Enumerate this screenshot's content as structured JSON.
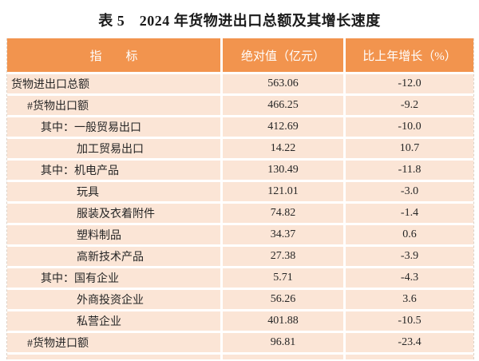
{
  "title": "表 5　2024 年货物进出口总额及其增长速度",
  "colors": {
    "header_bg": "#F2944E",
    "header_text": "#FFFFFF",
    "row_bg": "#FBE5D6",
    "body_text": "#262626"
  },
  "table": {
    "columns": [
      "指　　标",
      "绝对值（亿元）",
      "比上年增长（%）"
    ],
    "rows": [
      {
        "label": "货物进出口总额",
        "indent": 0,
        "value": "563.06",
        "growth": "-12.0"
      },
      {
        "label": "#货物出口额",
        "indent": 1,
        "value": "466.25",
        "growth": "-9.2"
      },
      {
        "label": "其中：一般贸易出口",
        "indent": 2,
        "value": "412.69",
        "growth": "-10.0"
      },
      {
        "label": "加工贸易出口",
        "indent": 3,
        "value": "14.22",
        "growth": "10.7"
      },
      {
        "label": "其中：机电产品",
        "indent": 2,
        "value": "130.49",
        "growth": "-11.8"
      },
      {
        "label": "玩具",
        "indent": 3,
        "value": "121.01",
        "growth": "-3.0"
      },
      {
        "label": "服装及衣着附件",
        "indent": 3,
        "value": "74.82",
        "growth": "-1.4"
      },
      {
        "label": "塑料制品",
        "indent": 3,
        "value": "34.37",
        "growth": "0.6"
      },
      {
        "label": "高新技术产品",
        "indent": 3,
        "value": "27.38",
        "growth": "-3.9"
      },
      {
        "label": "其中：国有企业",
        "indent": 2,
        "value": "5.71",
        "growth": "-4.3"
      },
      {
        "label": "外商投资企业",
        "indent": 3,
        "value": "56.26",
        "growth": "3.6"
      },
      {
        "label": "私营企业",
        "indent": 3,
        "value": "401.88",
        "growth": "-10.5"
      },
      {
        "label": "#货物进口额",
        "indent": 1,
        "value": "96.81",
        "growth": "-23.4"
      }
    ]
  }
}
